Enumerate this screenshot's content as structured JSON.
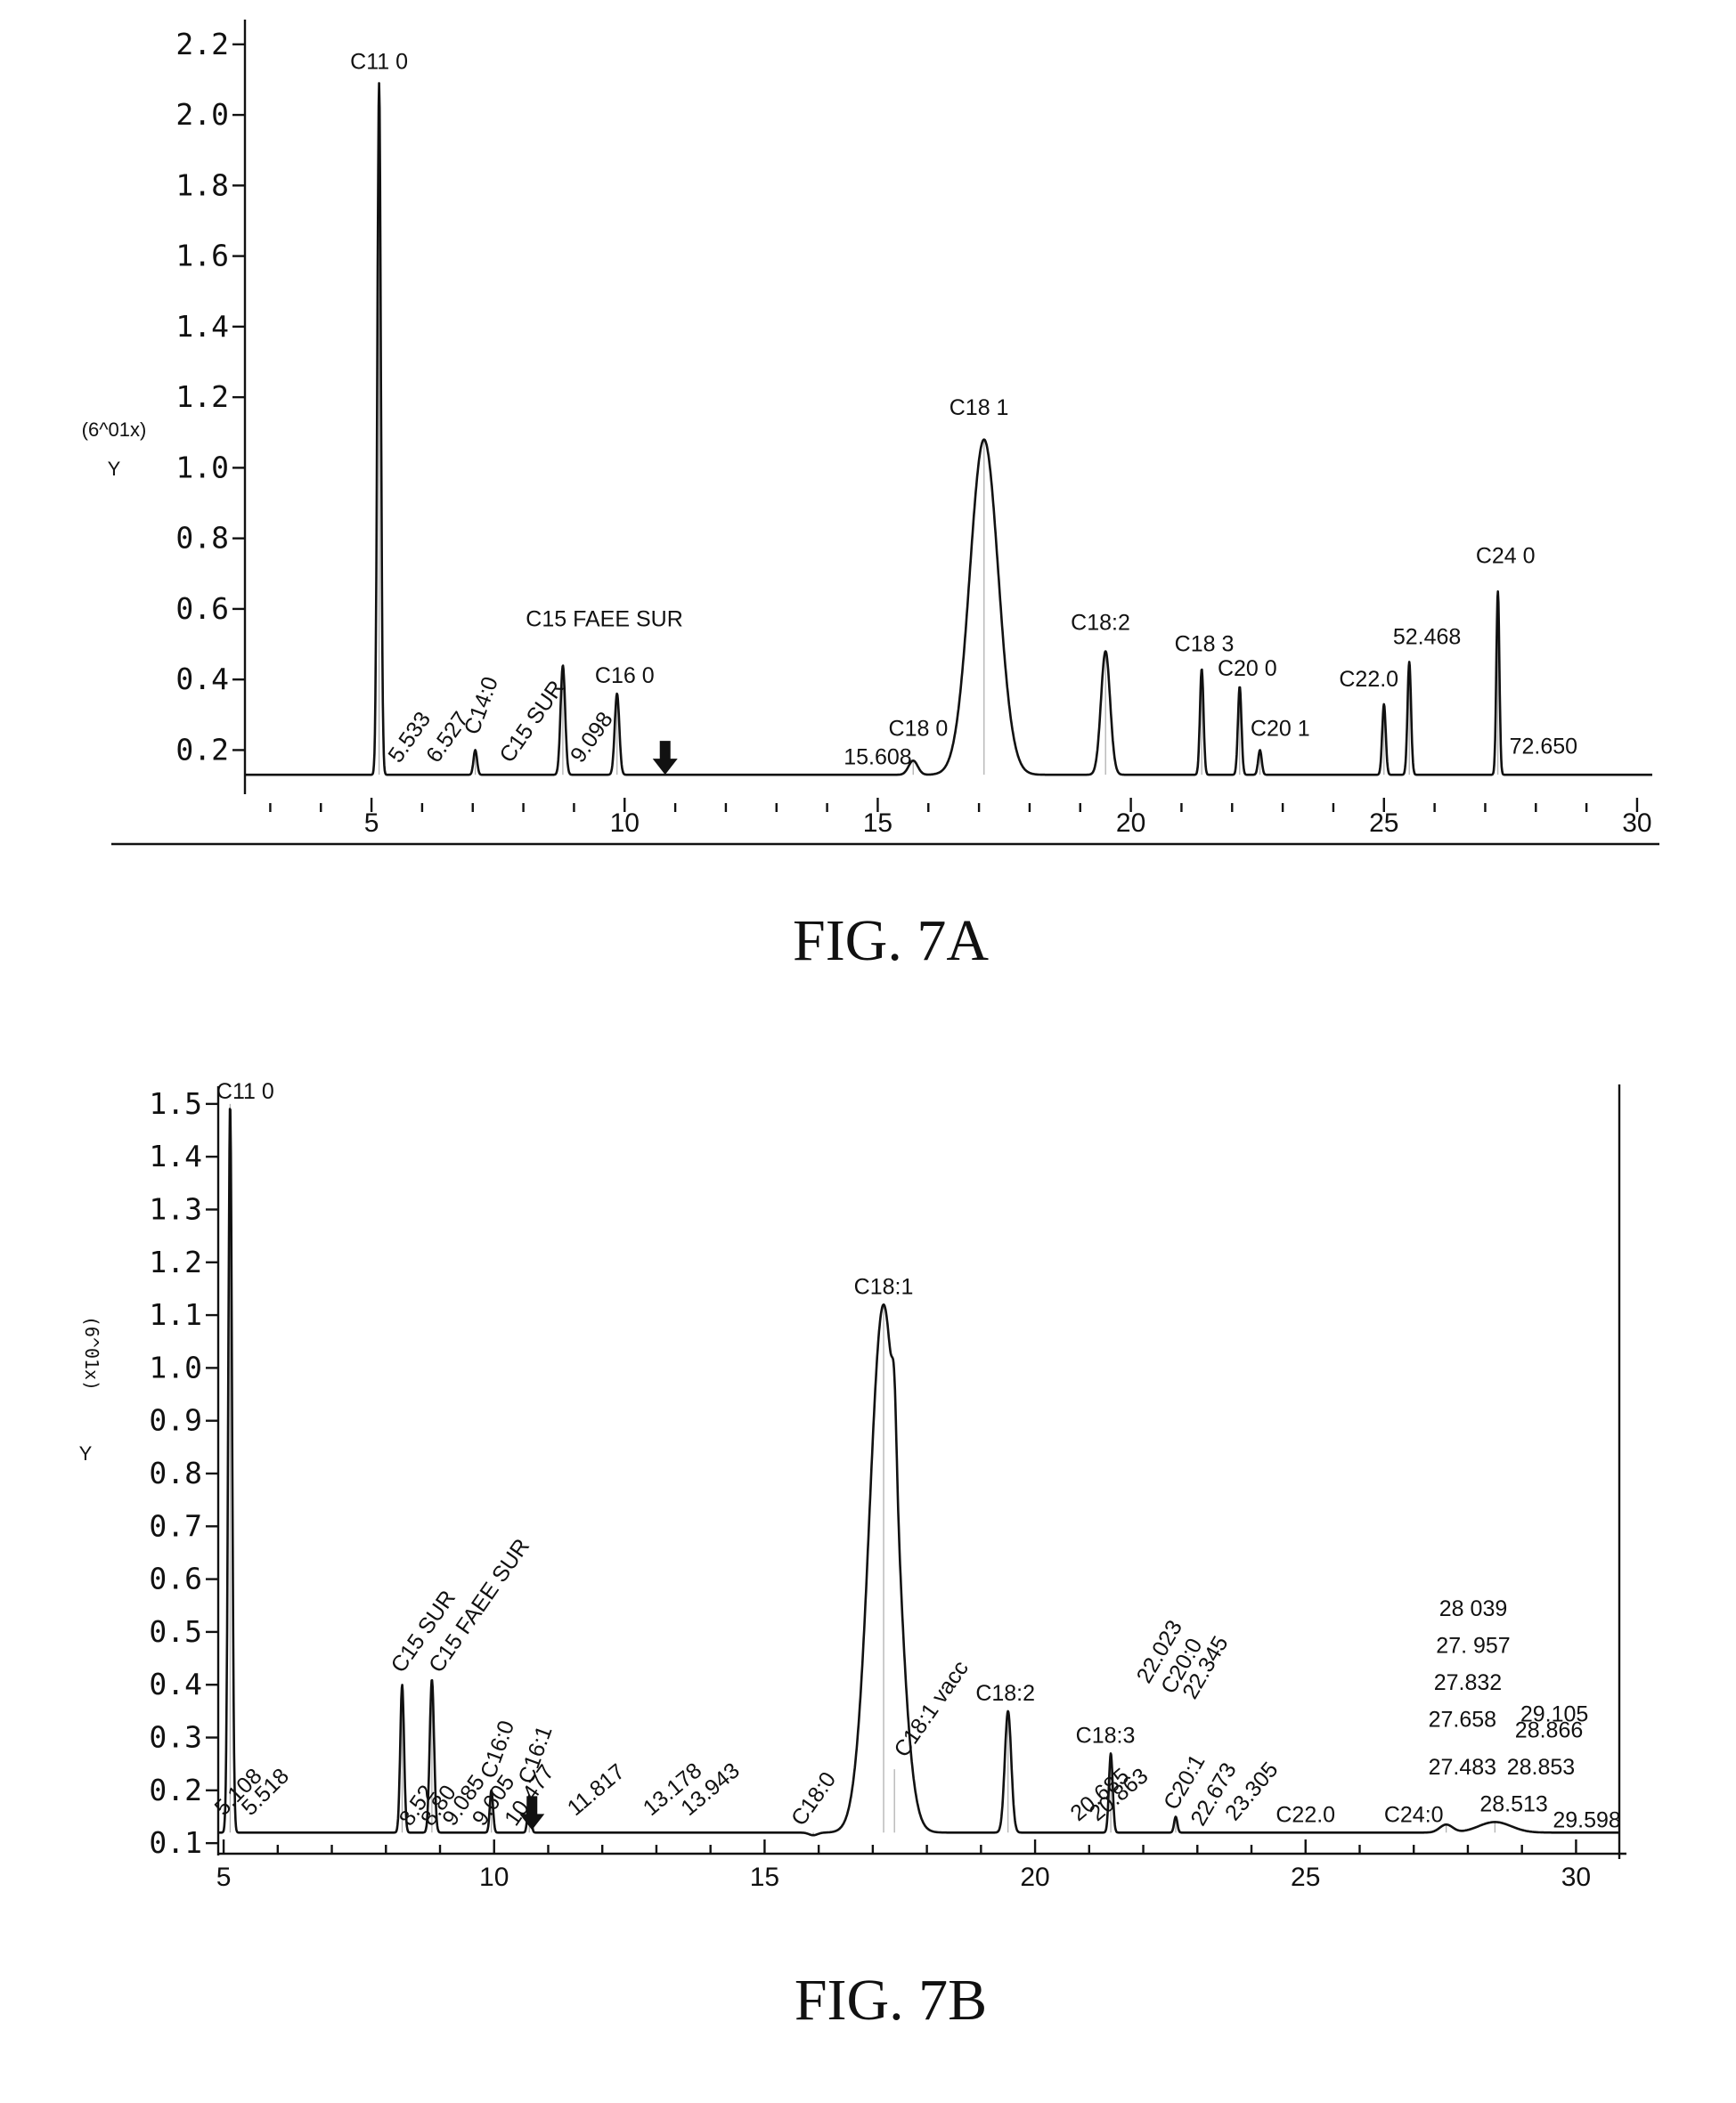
{
  "charts": [
    {
      "caption": "FIG. 7A",
      "chart_data": {
        "type": "line",
        "ylabel": "(6^01x)",
        "ylabel_sub": "Y",
        "xlim": [
          2.5,
          30.3
        ],
        "ylim": [
          0.08,
          2.25
        ],
        "x_ticks": [
          5,
          10,
          15,
          20,
          25,
          30
        ],
        "y_ticks": [
          0.2,
          0.4,
          0.6,
          0.8,
          1.0,
          1.2,
          1.4,
          1.6,
          1.8,
          2.0,
          2.2
        ],
        "y_tick_labels": [
          "0.2",
          "0.4",
          "0.6",
          "0.8",
          "1.0",
          "1.2",
          "1.4",
          "1.6",
          "1.8",
          "2.0",
          "2.2"
        ],
        "baseline": 0.13,
        "peaks": [
          {
            "x": 5.15,
            "height": 2.09,
            "width": 0.035
          },
          {
            "x": 7.05,
            "height": 0.2,
            "width": 0.035
          },
          {
            "x": 8.78,
            "height": 0.44,
            "width": 0.045
          },
          {
            "x": 9.85,
            "height": 0.36,
            "width": 0.045
          },
          {
            "x": 15.7,
            "height": 0.17,
            "width": 0.09
          },
          {
            "x": 17.1,
            "height": 1.08,
            "width": 0.28
          },
          {
            "x": 19.5,
            "height": 0.48,
            "width": 0.09
          },
          {
            "x": 21.4,
            "height": 0.43,
            "width": 0.035
          },
          {
            "x": 22.15,
            "height": 0.38,
            "width": 0.035
          },
          {
            "x": 22.55,
            "height": 0.2,
            "width": 0.035
          },
          {
            "x": 25.0,
            "height": 0.33,
            "width": 0.035
          },
          {
            "x": 25.5,
            "height": 0.45,
            "width": 0.035
          },
          {
            "x": 27.25,
            "height": 0.65,
            "width": 0.03
          }
        ],
        "annotations": [
          {
            "text": "C11 0",
            "x": 5.15,
            "y": 2.13,
            "rotate": 0
          },
          {
            "text": "5.533",
            "x": 5.55,
            "y": 0.16,
            "rotate": -55
          },
          {
            "text": "6.527",
            "x": 6.3,
            "y": 0.16,
            "rotate": -55
          },
          {
            "text": "C14:0",
            "x": 7.1,
            "y": 0.24,
            "rotate": -70
          },
          {
            "text": "C15 SUR",
            "x": 7.75,
            "y": 0.16,
            "rotate": -55
          },
          {
            "text": "C15 FAEE SUR",
            "x": 9.6,
            "y": 0.55,
            "rotate": 0
          },
          {
            "text": "9.098",
            "x": 9.15,
            "y": 0.16,
            "rotate": -55
          },
          {
            "text": "C16 0",
            "x": 10.0,
            "y": 0.39,
            "rotate": 0
          },
          {
            "text": "C18 0",
            "x": 15.8,
            "y": 0.24,
            "rotate": 0
          },
          {
            "text": "15.608",
            "x": 15.0,
            "y": 0.16,
            "rotate": 0
          },
          {
            "text": "C18 1",
            "x": 17.0,
            "y": 1.15,
            "rotate": 0
          },
          {
            "text": "C18:2",
            "x": 19.4,
            "y": 0.54,
            "rotate": 0
          },
          {
            "text": "C18 3",
            "x": 21.45,
            "y": 0.48,
            "rotate": 0
          },
          {
            "text": "C20 0",
            "x": 22.3,
            "y": 0.41,
            "rotate": 0
          },
          {
            "text": "C20 1",
            "x": 22.95,
            "y": 0.24,
            "rotate": 0
          },
          {
            "text": "C22.0",
            "x": 24.7,
            "y": 0.38,
            "rotate": 0
          },
          {
            "text": "52.468",
            "x": 25.85,
            "y": 0.5,
            "rotate": 0
          },
          {
            "text": "C24 0",
            "x": 27.4,
            "y": 0.73,
            "rotate": 0
          },
          {
            "text": "72.650",
            "x": 28.15,
            "y": 0.19,
            "rotate": 0
          }
        ]
      }
    },
    {
      "caption": "FIG. 7B",
      "chart_data": {
        "type": "line",
        "ylabel": "(6^01x)",
        "ylabel_sub": "Y",
        "xlim": [
          4.9,
          30.8
        ],
        "ylim": [
          0.08,
          1.52
        ],
        "x_ticks": [
          5,
          10,
          15,
          20,
          25,
          30
        ],
        "y_ticks": [
          0.1,
          0.2,
          0.3,
          0.4,
          0.5,
          0.6,
          0.7,
          0.8,
          0.9,
          1.0,
          1.1,
          1.2,
          1.3,
          1.4,
          1.5
        ],
        "y_tick_labels": [
          "0.1",
          "0.2",
          "0.3",
          "0.4",
          "0.5",
          "0.6",
          "0.7",
          "0.8",
          "0.9",
          "1.0",
          "1.1",
          "1.2",
          "1.3",
          "1.4",
          "1.5"
        ],
        "baseline": 0.12,
        "peaks": [
          {
            "x": 5.12,
            "height": 1.5,
            "width": 0.035
          },
          {
            "x": 8.3,
            "height": 0.4,
            "width": 0.035
          },
          {
            "x": 8.85,
            "height": 0.41,
            "width": 0.04
          },
          {
            "x": 9.95,
            "height": 0.2,
            "width": 0.03
          },
          {
            "x": 10.65,
            "height": 0.19,
            "width": 0.03
          },
          {
            "x": 15.9,
            "height": 0.115,
            "width": 0.08
          },
          {
            "x": 17.2,
            "height": 1.12,
            "width": 0.26
          },
          {
            "x": 17.4,
            "height": 0.24,
            "width": 0.04
          },
          {
            "x": 19.5,
            "height": 0.35,
            "width": 0.06
          },
          {
            "x": 21.4,
            "height": 0.27,
            "width": 0.035
          },
          {
            "x": 22.6,
            "height": 0.15,
            "width": 0.03
          },
          {
            "x": 27.6,
            "height": 0.135,
            "width": 0.12
          },
          {
            "x": 28.5,
            "height": 0.14,
            "width": 0.3
          }
        ],
        "annotations": [
          {
            "text": "C11 0",
            "x": 5.4,
            "y": 1.51,
            "rotate": 0
          },
          {
            "text": "5.108",
            "x": 5.0,
            "y": 0.15,
            "rotate": -45
          },
          {
            "text": "5.518",
            "x": 5.5,
            "y": 0.15,
            "rotate": -45
          },
          {
            "text": "C15 SUR",
            "x": 8.3,
            "y": 0.42,
            "rotate": -55
          },
          {
            "text": "C15 FAEE SUR",
            "x": 9.0,
            "y": 0.42,
            "rotate": -55
          },
          {
            "text": "8.52",
            "x": 8.45,
            "y": 0.13,
            "rotate": -55
          },
          {
            "text": "8.80",
            "x": 8.85,
            "y": 0.13,
            "rotate": -55
          },
          {
            "text": "9.085",
            "x": 9.25,
            "y": 0.13,
            "rotate": -55
          },
          {
            "text": "9.605",
            "x": 9.8,
            "y": 0.13,
            "rotate": -55
          },
          {
            "text": "C16:0",
            "x": 10.0,
            "y": 0.22,
            "rotate": -70
          },
          {
            "text": "10.477",
            "x": 10.4,
            "y": 0.13,
            "rotate": -55
          },
          {
            "text": "C16:1",
            "x": 10.7,
            "y": 0.21,
            "rotate": -70
          },
          {
            "text": "11.817",
            "x": 11.5,
            "y": 0.15,
            "rotate": -40
          },
          {
            "text": "13.178",
            "x": 12.9,
            "y": 0.15,
            "rotate": -40
          },
          {
            "text": "13.943",
            "x": 13.6,
            "y": 0.15,
            "rotate": -40
          },
          {
            "text": "C18:0",
            "x": 15.7,
            "y": 0.13,
            "rotate": -55
          },
          {
            "text": "C18:1",
            "x": 17.2,
            "y": 1.14,
            "rotate": 0
          },
          {
            "text": "C18:1 vacc",
            "x": 17.6,
            "y": 0.26,
            "rotate": -55
          },
          {
            "text": "C18:2",
            "x": 19.45,
            "y": 0.37,
            "rotate": 0
          },
          {
            "text": "C18:3",
            "x": 21.3,
            "y": 0.29,
            "rotate": 0
          },
          {
            "text": "20.685",
            "x": 20.8,
            "y": 0.14,
            "rotate": -40
          },
          {
            "text": "20.863",
            "x": 21.15,
            "y": 0.14,
            "rotate": -40
          },
          {
            "text": "22.023",
            "x": 22.1,
            "y": 0.4,
            "rotate": -60
          },
          {
            "text": "C20:0",
            "x": 22.55,
            "y": 0.38,
            "rotate": -60
          },
          {
            "text": "22.345",
            "x": 22.95,
            "y": 0.37,
            "rotate": -60
          },
          {
            "text": "C20:1",
            "x": 22.6,
            "y": 0.16,
            "rotate": -60
          },
          {
            "text": "22.673",
            "x": 23.1,
            "y": 0.13,
            "rotate": -60
          },
          {
            "text": "23.305",
            "x": 23.7,
            "y": 0.14,
            "rotate": -50
          },
          {
            "text": "C22.0",
            "x": 25.0,
            "y": 0.14,
            "rotate": 0
          },
          {
            "text": "C24:0",
            "x": 27.0,
            "y": 0.14,
            "rotate": 0
          },
          {
            "text": "28 039",
            "x": 28.1,
            "y": 0.53,
            "rotate": 0
          },
          {
            "text": "27. 957",
            "x": 28.1,
            "y": 0.46,
            "rotate": 0
          },
          {
            "text": "27.832",
            "x": 28.0,
            "y": 0.39,
            "rotate": 0
          },
          {
            "text": "29.105",
            "x": 29.6,
            "y": 0.33,
            "rotate": 0
          },
          {
            "text": "27.658",
            "x": 27.9,
            "y": 0.32,
            "rotate": 0
          },
          {
            "text": "28.866",
            "x": 29.5,
            "y": 0.3,
            "rotate": 0
          },
          {
            "text": "27.483",
            "x": 27.9,
            "y": 0.23,
            "rotate": 0
          },
          {
            "text": "28.853",
            "x": 29.35,
            "y": 0.23,
            "rotate": 0
          },
          {
            "text": "28.513",
            "x": 28.85,
            "y": 0.16,
            "rotate": 0
          },
          {
            "text": "29.598",
            "x": 30.2,
            "y": 0.13,
            "rotate": 0
          }
        ]
      }
    }
  ]
}
